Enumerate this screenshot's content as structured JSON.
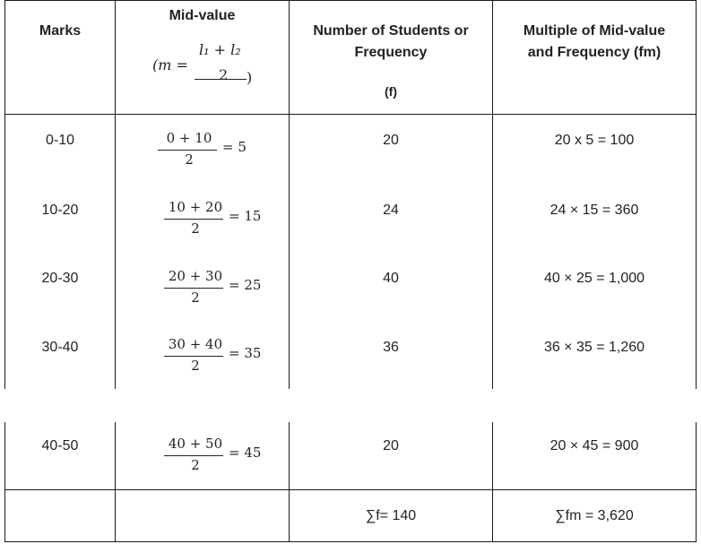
{
  "headers": {
    "marks": "Marks",
    "mid_value": "Mid-value",
    "mid_formula_lhs": "(m =",
    "mid_formula_num": "l₁ + l₂",
    "mid_formula_den": "2",
    "mid_formula_close": ")",
    "frequency_line1": "Number of Students or",
    "frequency_line2": "Frequency",
    "frequency_symbol": "(f)",
    "fm_line1": "Multiple of Mid-value",
    "fm_line2": "and Frequency (fm)"
  },
  "rows": [
    {
      "marks": "0-10",
      "mid_num": "0 + 10",
      "mid_den": "2",
      "mid_res": "= 5",
      "freq": "20",
      "fm": "20 x 5 = 100"
    },
    {
      "marks": "10-20",
      "mid_num": "10 + 20",
      "mid_den": "2",
      "mid_res": "= 15",
      "freq": "24",
      "fm": "24 × 15 = 360"
    },
    {
      "marks": "20-30",
      "mid_num": "20 + 30",
      "mid_den": "2",
      "mid_res": "= 25",
      "freq": "40",
      "fm": "40 × 25 = 1,000"
    },
    {
      "marks": "30-40",
      "mid_num": "30 + 40",
      "mid_den": "2",
      "mid_res": "= 35",
      "freq": "36",
      "fm": "36 × 35 = 1,260"
    },
    {
      "marks": "40-50",
      "mid_num": "40 + 50",
      "mid_den": "2",
      "mid_res": "= 45",
      "freq": "20",
      "fm": "20 × 45 = 900"
    }
  ],
  "totals": {
    "freq": "∑f= 140",
    "fm": "∑fm = 3,620"
  }
}
